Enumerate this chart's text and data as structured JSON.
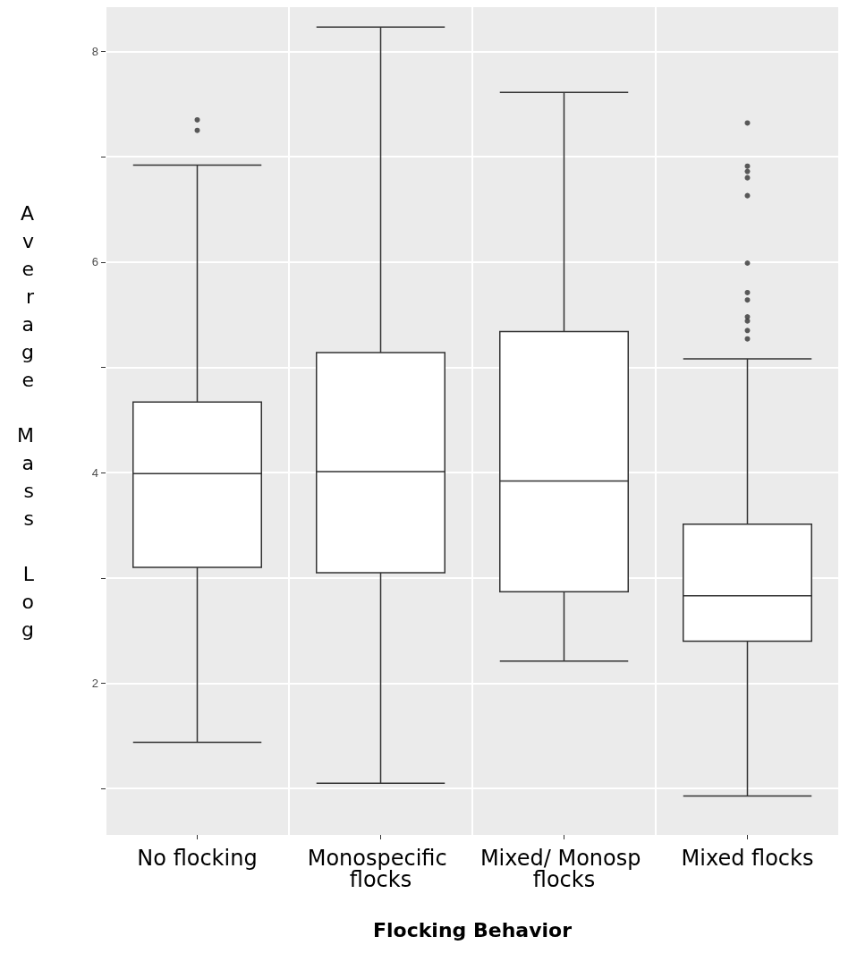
{
  "chart_data": {
    "type": "box",
    "xlabel": "Flocking Behavior",
    "ylabel": "Average Mass Log",
    "categories": [
      "No flocking",
      "Monospecific flocks",
      "Mixed/ Monosp flocks",
      "Mixed flocks"
    ],
    "boxes": [
      {
        "low": 1.44,
        "q1": 3.1,
        "median": 3.99,
        "q3": 4.67,
        "high": 6.92,
        "outliers": [
          7.25,
          7.35
        ]
      },
      {
        "low": 1.05,
        "q1": 3.05,
        "median": 4.01,
        "q3": 5.14,
        "high": 8.23
      },
      {
        "low": 2.21,
        "q1": 2.87,
        "median": 3.92,
        "q3": 5.34,
        "high": 7.61
      },
      {
        "low": 0.93,
        "q1": 2.4,
        "median": 2.83,
        "q3": 3.51,
        "high": 5.08,
        "outliers": [
          5.27,
          5.35,
          5.44,
          5.48,
          5.64,
          5.71,
          5.99,
          6.63,
          6.8,
          6.86,
          6.91,
          7.32
        ]
      }
    ],
    "ylim": [
      0.56,
      8.42
    ],
    "yticks": [
      {
        "value": 1,
        "label": null
      },
      2,
      {
        "value": 3,
        "label": null
      },
      4,
      {
        "value": 5,
        "label": null
      },
      6,
      {
        "value": 7,
        "label": null
      },
      8
    ],
    "grid": true
  }
}
